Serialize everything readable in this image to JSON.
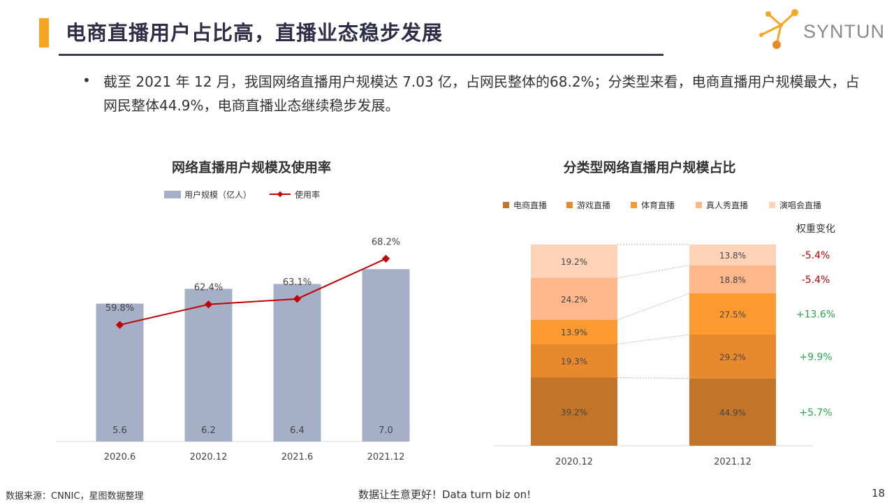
{
  "header": {
    "title": "电商直播用户占比高，直播业态稳步发展",
    "logo_text": "SYNTUN"
  },
  "summary": {
    "bullet": "•",
    "text": "截至 2021 年 12 月，我国网络直播用户规模达 7.03 亿，占网民整体的68.2%；分类型来看，电商直播用户规模最大，占网民整体44.9%，电商直播业态继续稳步发展。"
  },
  "footer": {
    "source": "数据来源：CNNIC，星图数据整理",
    "slogan": "数据让生意更好！Data turn biz on!",
    "page": "18"
  },
  "colors": {
    "bar": "#a6afc8",
    "line": "#c00000",
    "ecommerce": "#c27428",
    "game": "#e8892e",
    "sports": "#fd9a2f",
    "show": "#fdb78a",
    "concert": "#fed3b7",
    "positive": "#2aa84a",
    "negative": "#c00000"
  },
  "chart_data": [
    {
      "type": "bar",
      "title": "网络直播用户规模及使用率",
      "legend": [
        "用户规模（亿人）",
        "使用率"
      ],
      "categories": [
        "2020.6",
        "2020.12",
        "2021.6",
        "2021.12"
      ],
      "series": [
        {
          "name": "用户规模（亿人）",
          "kind": "bar",
          "values": [
            5.6,
            6.2,
            6.4,
            7.0
          ],
          "labels": [
            "5.6",
            "6.2",
            "6.4",
            "7.0"
          ]
        },
        {
          "name": "使用率",
          "kind": "line",
          "values": [
            59.8,
            62.4,
            63.1,
            68.2
          ],
          "labels": [
            "59.8%",
            "62.4%",
            "63.1%",
            "68.2%"
          ]
        }
      ],
      "ylim_bar": [
        0,
        8
      ],
      "ylim_line": [
        45,
        70
      ],
      "legend_position": "top",
      "grid": false
    },
    {
      "type": "bar",
      "stacked": true,
      "title": "分类型网络直播用户规模占比",
      "categories": [
        "2020.12",
        "2021.12"
      ],
      "series": [
        {
          "name": "电商直播",
          "values": [
            39.2,
            44.9
          ],
          "labels": [
            "39.2%",
            "44.9%"
          ]
        },
        {
          "name": "游戏直播",
          "values": [
            19.3,
            29.2
          ],
          "labels": [
            "19.3%",
            "29.2%"
          ]
        },
        {
          "name": "体育直播",
          "values": [
            13.9,
            27.5
          ],
          "labels": [
            "13.9%",
            "27.5%"
          ]
        },
        {
          "name": "真人秀直播",
          "values": [
            24.2,
            18.8
          ],
          "labels": [
            "24.2%",
            "18.8%"
          ]
        },
        {
          "name": "演唱会直播",
          "values": [
            19.2,
            13.8
          ],
          "labels": [
            "19.2%",
            "13.8%"
          ]
        }
      ],
      "change_header": "权重变化",
      "changes": [
        "+5.7%",
        "+9.9%",
        "+13.6%",
        "-5.4%",
        "-5.4%"
      ],
      "legend_position": "top",
      "grid": false
    }
  ]
}
